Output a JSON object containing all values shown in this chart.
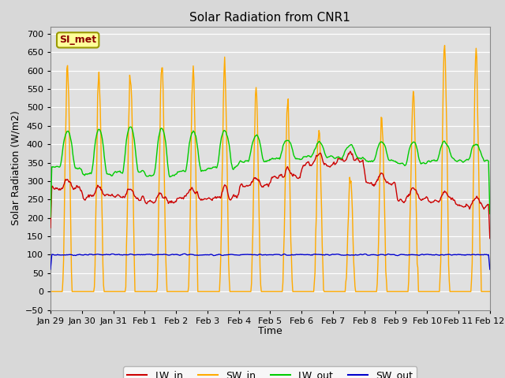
{
  "title": "Solar Radiation from CNR1",
  "xlabel": "Time",
  "ylabel": "Solar Radiation (W/m2)",
  "ylim": [
    -50,
    720
  ],
  "xlim_days": 14.0,
  "fig_bg_color": "#d8d8d8",
  "plot_bg_color": "#e0e0e0",
  "grid_color": "#ffffff",
  "colors": {
    "LW_in": "#cc0000",
    "SW_in": "#ffaa00",
    "LW_out": "#00cc00",
    "SW_out": "#0000cc"
  },
  "annotation_text": "SI_met",
  "annotation_bg": "#ffff99",
  "annotation_border": "#999900",
  "tick_labels": [
    "Jan 29",
    "Jan 30",
    "Jan 31",
    "Feb 1",
    "Feb 2",
    "Feb 3",
    "Feb 4",
    "Feb 5",
    "Feb 6",
    "Feb 7",
    "Feb 8",
    "Feb 9",
    "Feb 10",
    "Feb 11",
    "Feb 12"
  ],
  "yticks": [
    -50,
    0,
    50,
    100,
    150,
    200,
    250,
    300,
    350,
    400,
    450,
    500,
    550,
    600,
    650,
    700
  ],
  "linewidth": 1.0,
  "title_fontsize": 11,
  "label_fontsize": 9,
  "tick_fontsize": 8
}
